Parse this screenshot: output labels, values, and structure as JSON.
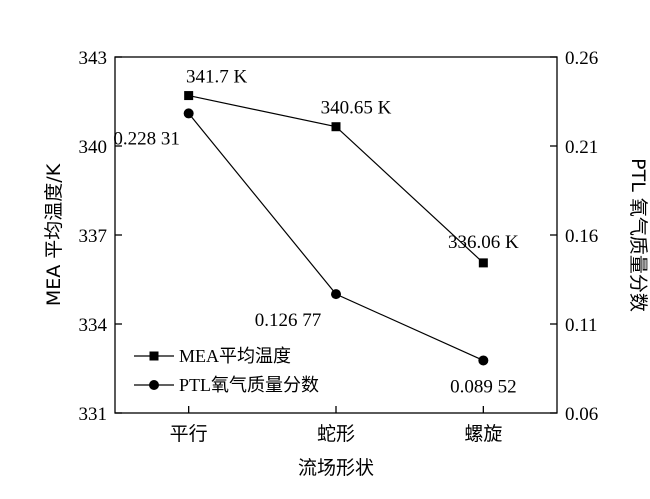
{
  "chart_data": {
    "type": "line",
    "categories": [
      "平行",
      "蛇形",
      "螺旋"
    ],
    "xlabel": "流场形状",
    "ylabel_left": "MEA 平均温度/K",
    "ylabel_right": "PTL 氧气质量分数",
    "yleft": {
      "lim": [
        331,
        343
      ],
      "ticks": [
        "331",
        "334",
        "337",
        "340",
        "343"
      ],
      "tick_values": [
        331,
        334,
        337,
        340,
        343
      ]
    },
    "yright": {
      "lim": [
        0.06,
        0.26
      ],
      "ticks": [
        "0.06",
        "0.11",
        "0.16",
        "0.21",
        "0.26"
      ],
      "tick_values": [
        0.06,
        0.11,
        0.16,
        0.21,
        0.26
      ]
    },
    "series": [
      {
        "name": "MEA平均温度",
        "axis": "left",
        "marker": "square",
        "values": [
          341.7,
          340.65,
          336.06
        ],
        "labels": [
          "341.7 K",
          "340.65 K",
          "336.06 K"
        ]
      },
      {
        "name": "PTL氧气质量分数",
        "axis": "right",
        "marker": "circle",
        "values": [
          0.22831,
          0.12677,
          0.08952
        ],
        "labels": [
          "0.228 31",
          "0.126 77",
          "0.089 52"
        ]
      }
    ],
    "legend_position": "bottom-left",
    "grid": false
  }
}
